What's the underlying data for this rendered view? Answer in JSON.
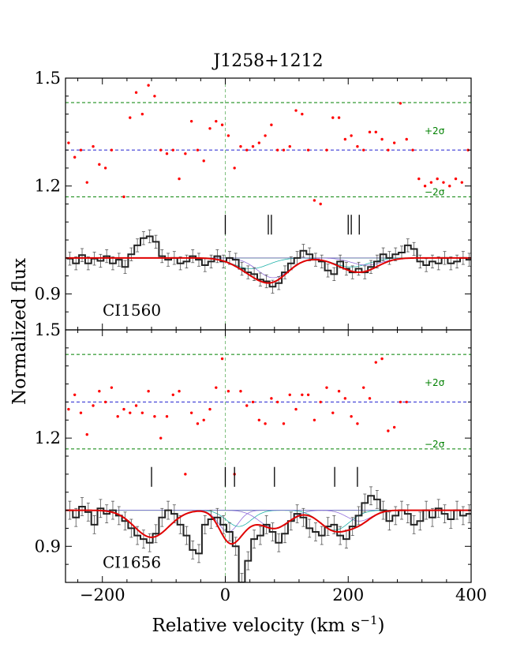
{
  "chart_data": {
    "type": "line",
    "title": "J1258+1212",
    "xlabel": "Relative velocity (km s",
    "xlabel_exp": "−1",
    "xlabel_close": ")",
    "ylabel": "Normalized flux",
    "xlim": [
      -260,
      400
    ],
    "ylim": [
      0.8,
      1.5
    ],
    "xticks": [
      -200,
      0,
      200,
      400
    ],
    "xtick_labels": [
      "−200",
      "0",
      "200",
      "400"
    ],
    "yticks": [
      0.9,
      1.2,
      1.5
    ],
    "ytick_labels": [
      "0.9",
      "1.2",
      "1.5"
    ],
    "colors": {
      "spectrum": "#222222",
      "model": "#e00000",
      "residual": "#ff0000",
      "zero_line": "#2020d0",
      "sigma": "#008000",
      "velocity_zero": "#7fbf7f",
      "component_a": "#20b2aa",
      "component_b": "#9370db"
    },
    "panels": [
      {
        "label": "CI1560",
        "continuum": 1.0,
        "residual_center": 1.3,
        "sigma_upper": 1.432,
        "sigma_lower": 1.17,
        "sigma_plus_label": "+2σ",
        "sigma_minus_label": "−2σ",
        "component_ticks": [
          0,
          70,
          75,
          200,
          205,
          218
        ],
        "model_components": [
          {
            "v": 42,
            "depth": 0.03,
            "width": 28
          },
          {
            "v": 78,
            "depth": 0.055,
            "width": 26
          },
          {
            "v": 205,
            "depth": 0.025,
            "width": 28
          },
          {
            "v": 230,
            "depth": 0.02,
            "width": 25
          }
        ],
        "spectrum": {
          "x": [
            -258,
            -248,
            -238,
            -228,
            -218,
            -208,
            -198,
            -188,
            -178,
            -168,
            -158,
            -148,
            -138,
            -128,
            -118,
            -108,
            -98,
            -88,
            -78,
            -68,
            -58,
            -48,
            -38,
            -28,
            -18,
            -8,
            2,
            12,
            22,
            32,
            42,
            52,
            62,
            72,
            82,
            92,
            102,
            112,
            122,
            132,
            142,
            152,
            162,
            172,
            182,
            192,
            202,
            212,
            222,
            232,
            242,
            252,
            262,
            272,
            282,
            292,
            302,
            312,
            322,
            332,
            342,
            352,
            362,
            372,
            382,
            392
          ],
          "y": [
            0.998,
            0.985,
            1.008,
            0.985,
            0.998,
            0.992,
            1.005,
            0.985,
            0.995,
            0.975,
            1.01,
            1.035,
            1.055,
            1.06,
            1.045,
            1.005,
            0.995,
            1.0,
            0.985,
            0.99,
            1.005,
            0.995,
            0.98,
            0.99,
            1.005,
            0.99,
            1.0,
            0.995,
            0.97,
            0.96,
            0.955,
            0.94,
            0.935,
            0.92,
            0.93,
            0.96,
            0.985,
            1.0,
            1.02,
            1.01,
            0.995,
            0.99,
            0.965,
            0.955,
            0.99,
            0.97,
            0.96,
            0.97,
            0.96,
            0.975,
            0.99,
            1.01,
            1.0,
            1.01,
            1.015,
            1.035,
            1.025,
            0.99,
            0.98,
            0.99,
            0.985,
            1.0,
            0.985,
            0.99,
            1.0,
            0.995
          ],
          "err": 0.018
        },
        "residuals": {
          "x": [
            -255,
            -245,
            -235,
            -225,
            -215,
            -205,
            -195,
            -185,
            -165,
            -155,
            -145,
            -135,
            -125,
            -115,
            -105,
            -95,
            -85,
            -75,
            -65,
            -55,
            -45,
            -35,
            -25,
            -15,
            -5,
            5,
            15,
            25,
            35,
            45,
            55,
            65,
            75,
            85,
            95,
            105,
            115,
            125,
            135,
            145,
            155,
            165,
            175,
            185,
            195,
            205,
            215,
            225,
            235,
            245,
            255,
            265,
            275,
            285,
            295,
            305,
            315,
            325,
            335,
            345,
            355,
            365,
            375,
            385,
            395
          ],
          "y": [
            1.32,
            1.28,
            1.3,
            1.21,
            1.31,
            1.26,
            1.25,
            1.3,
            1.17,
            1.39,
            1.46,
            1.4,
            1.48,
            1.45,
            1.3,
            1.29,
            1.3,
            1.22,
            1.29,
            1.38,
            1.3,
            1.27,
            1.36,
            1.38,
            1.37,
            1.34,
            1.25,
            1.31,
            1.3,
            1.31,
            1.32,
            1.34,
            1.37,
            1.3,
            1.3,
            1.31,
            1.41,
            1.4,
            1.3,
            1.16,
            1.15,
            1.3,
            1.39,
            1.39,
            1.33,
            1.34,
            1.31,
            1.3,
            1.35,
            1.35,
            1.33,
            1.3,
            1.32,
            1.43,
            1.33,
            1.3,
            1.22,
            1.2,
            1.21,
            1.22,
            1.21,
            1.2,
            1.22,
            1.21,
            1.3
          ]
        }
      },
      {
        "label": "CI1656",
        "continuum": 1.0,
        "residual_center": 1.3,
        "sigma_upper": 1.432,
        "sigma_lower": 1.17,
        "sigma_plus_label": "+2σ",
        "sigma_minus_label": "−2σ",
        "component_ticks": [
          -120,
          0,
          15,
          80,
          178,
          215
        ],
        "model_components": [
          {
            "v": -120,
            "depth": 0.075,
            "width": 28
          },
          {
            "v": 5,
            "depth": 0.06,
            "width": 16
          },
          {
            "v": 22,
            "depth": 0.045,
            "width": 20
          },
          {
            "v": 80,
            "depth": 0.05,
            "width": 24
          },
          {
            "v": 178,
            "depth": 0.055,
            "width": 24
          },
          {
            "v": 218,
            "depth": 0.03,
            "width": 20
          }
        ],
        "spectrum": {
          "x": [
            -258,
            -248,
            -238,
            -228,
            -218,
            -208,
            -198,
            -188,
            -178,
            -168,
            -158,
            -148,
            -138,
            -128,
            -118,
            -108,
            -98,
            -88,
            -78,
            -68,
            -58,
            -48,
            -38,
            -28,
            -18,
            -8,
            2,
            12,
            22,
            32,
            42,
            52,
            62,
            72,
            82,
            92,
            102,
            112,
            122,
            132,
            142,
            152,
            162,
            172,
            182,
            192,
            202,
            212,
            222,
            232,
            242,
            252,
            262,
            272,
            282,
            292,
            302,
            312,
            322,
            332,
            342,
            352,
            362,
            372,
            382,
            392
          ],
          "y": [
            1.0,
            0.98,
            1.01,
            0.995,
            0.96,
            1.005,
            0.99,
            1.0,
            0.985,
            0.97,
            0.95,
            0.93,
            0.92,
            0.91,
            0.935,
            0.98,
            1.0,
            0.99,
            0.96,
            0.93,
            0.89,
            0.88,
            0.96,
            0.975,
            0.98,
            0.96,
            0.94,
            0.9,
            0.8,
            0.86,
            0.92,
            0.93,
            0.96,
            0.94,
            0.91,
            0.935,
            0.97,
            0.99,
            0.98,
            0.95,
            0.94,
            0.93,
            0.955,
            0.96,
            0.93,
            0.92,
            0.955,
            0.985,
            1.02,
            1.04,
            1.03,
            1.0,
            0.97,
            0.985,
            1.0,
            0.99,
            0.96,
            0.97,
            1.0,
            0.98,
            1.005,
            0.99,
            0.975,
            1.0,
            0.985,
            0.99
          ],
          "err": 0.025
        },
        "residuals": {
          "x": [
            -255,
            -245,
            -235,
            -225,
            -215,
            -205,
            -195,
            -185,
            -175,
            -165,
            -155,
            -145,
            -135,
            -125,
            -115,
            -105,
            -95,
            -85,
            -75,
            -65,
            -55,
            -45,
            -35,
            -25,
            -15,
            -5,
            5,
            15,
            25,
            35,
            45,
            55,
            65,
            75,
            85,
            95,
            105,
            115,
            125,
            135,
            145,
            155,
            165,
            175,
            185,
            195,
            205,
            215,
            225,
            235,
            245,
            255,
            265,
            275,
            285,
            295
          ],
          "y": [
            1.28,
            1.32,
            1.27,
            1.21,
            1.29,
            1.33,
            1.3,
            1.34,
            1.26,
            1.28,
            1.27,
            1.29,
            1.27,
            1.33,
            1.26,
            1.2,
            1.26,
            1.32,
            1.33,
            1.1,
            1.27,
            1.24,
            1.25,
            1.28,
            1.34,
            1.42,
            1.33,
            1.1,
            1.33,
            1.29,
            1.3,
            1.25,
            1.24,
            1.31,
            1.3,
            1.24,
            1.32,
            1.28,
            1.32,
            1.32,
            1.25,
            1.3,
            1.34,
            1.27,
            1.33,
            1.31,
            1.26,
            1.24,
            1.34,
            1.31,
            1.41,
            1.42,
            1.22,
            1.23,
            1.3,
            1.3
          ]
        }
      }
    ]
  }
}
